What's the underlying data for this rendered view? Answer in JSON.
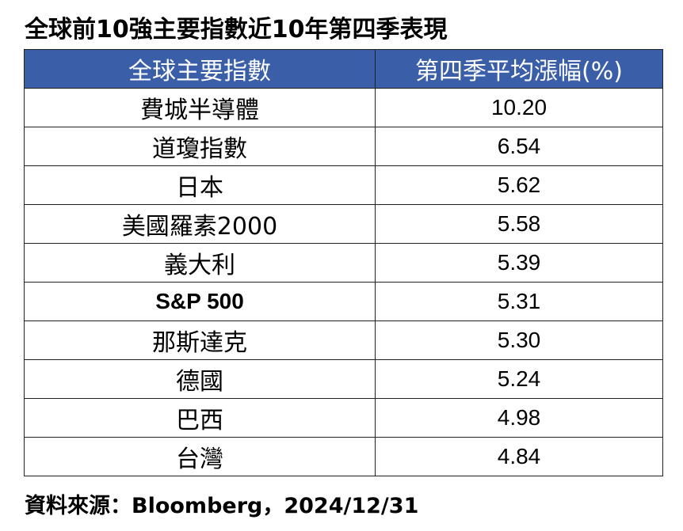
{
  "title": "全球前10強主要指數近10年第四季表現",
  "table": {
    "headers": [
      "全球主要指數",
      "第四季平均漲幅(%)"
    ],
    "rows": [
      {
        "index": "費城半導體",
        "value": "10.20"
      },
      {
        "index": "道瓊指數",
        "value": "6.54"
      },
      {
        "index": "日本",
        "value": "5.62"
      },
      {
        "index": "美國羅素2000",
        "value": "5.58"
      },
      {
        "index": "義大利",
        "value": "5.39"
      },
      {
        "index": "S&P 500",
        "value": "5.31"
      },
      {
        "index": "那斯達克",
        "value": "5.30"
      },
      {
        "index": "德國",
        "value": "5.24"
      },
      {
        "index": "巴西",
        "value": "4.98"
      },
      {
        "index": "台灣",
        "value": "4.84"
      }
    ]
  },
  "source": "資料來源：Bloomberg，2024/12/31",
  "colors": {
    "header_background": "#3a5fa8",
    "header_text": "#ffffff"
  }
}
